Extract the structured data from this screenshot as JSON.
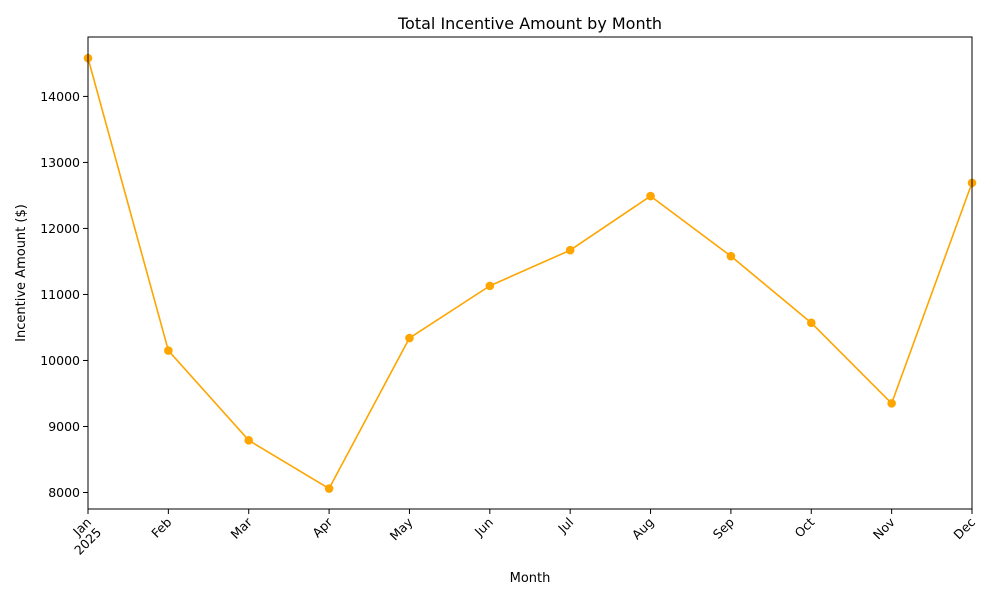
{
  "chart_data": {
    "type": "line",
    "title": "Total Incentive Amount by Month",
    "xlabel": "Month",
    "ylabel": "Incentive Amount ($)",
    "categories": [
      "Jan\n2025",
      "Feb",
      "Mar",
      "Apr",
      "May",
      "Jun",
      "Jul",
      "Aug",
      "Sep",
      "Oct",
      "Nov",
      "Dec"
    ],
    "x": [
      "2025-01",
      "2025-02",
      "2025-03",
      "2025-04",
      "2025-05",
      "2025-06",
      "2025-07",
      "2025-08",
      "2025-09",
      "2025-10",
      "2025-11",
      "2025-12"
    ],
    "values": [
      14580,
      10150,
      8790,
      8060,
      10340,
      11130,
      11670,
      12490,
      11580,
      10570,
      9350,
      12690
    ],
    "ylim": [
      7750,
      14900
    ],
    "yticks": [
      8000,
      9000,
      10000,
      11000,
      12000,
      13000,
      14000
    ],
    "grid": false,
    "marker": "circle",
    "line_color": "#FFA500"
  }
}
